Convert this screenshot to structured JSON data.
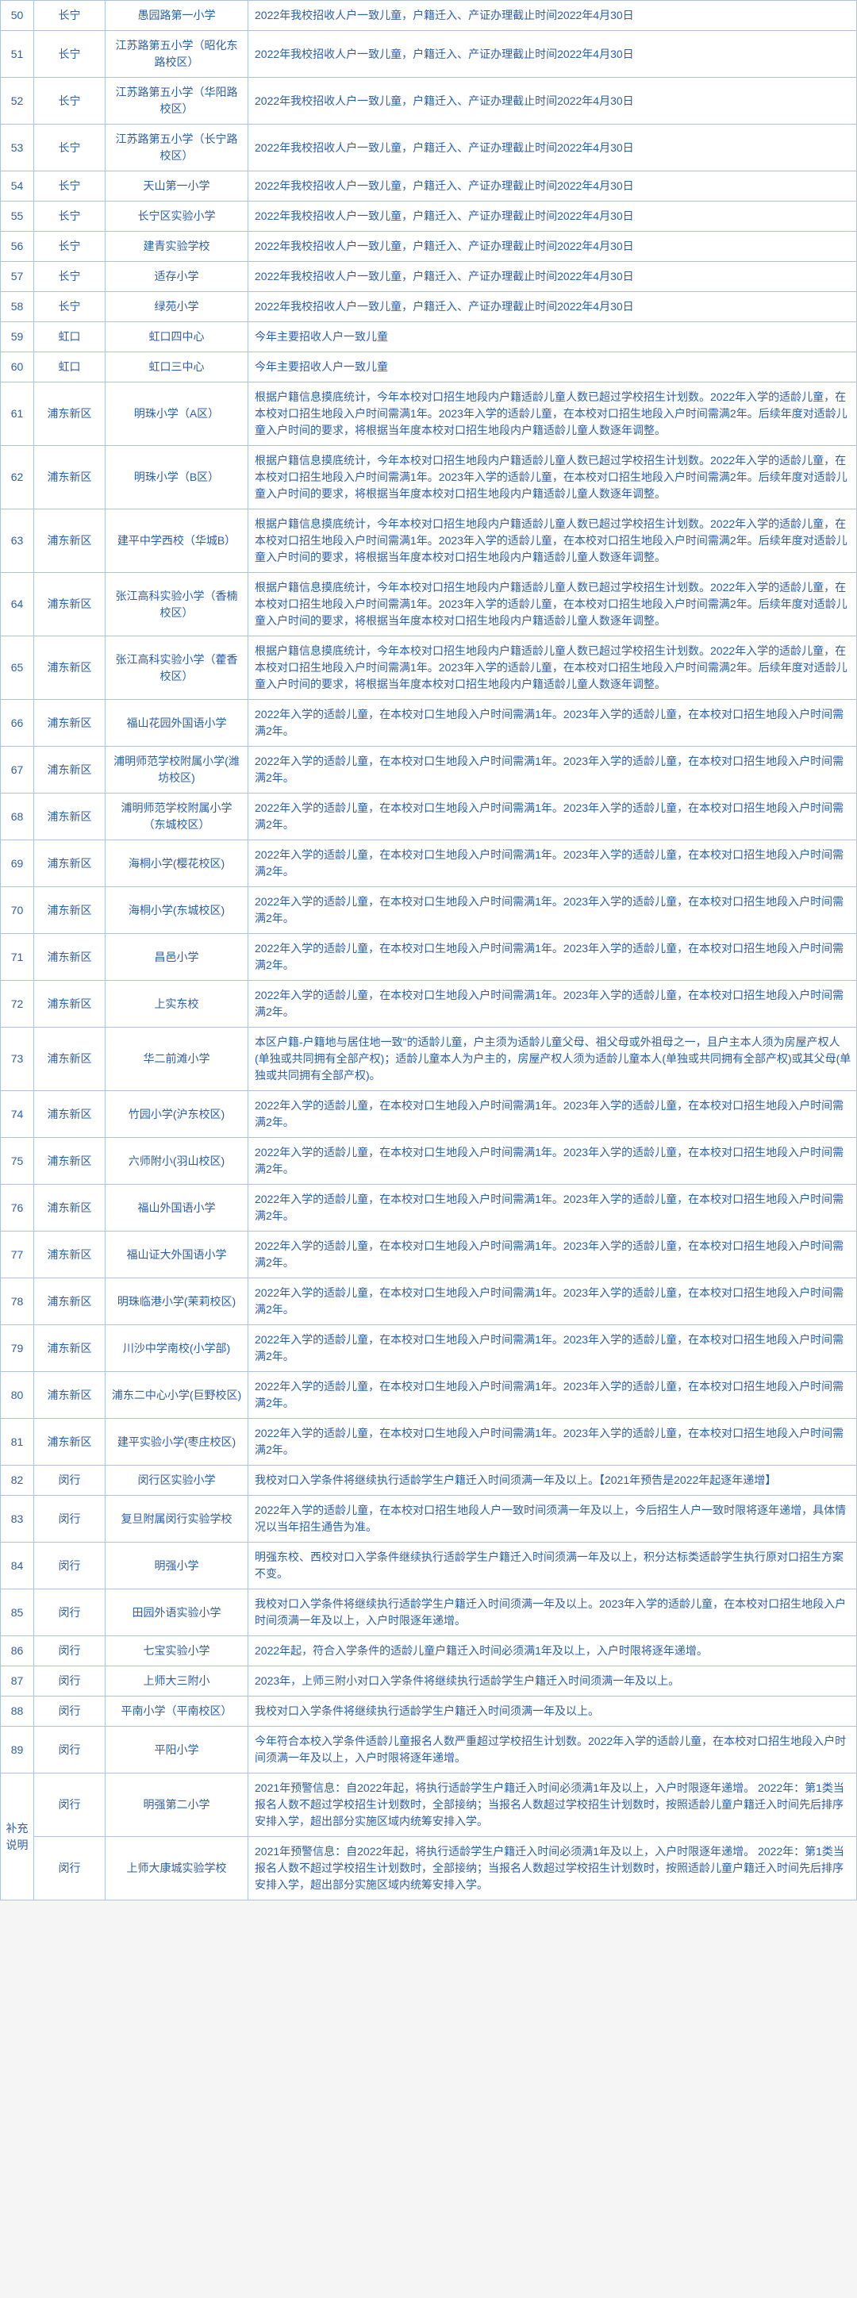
{
  "style": {
    "border_color": "#b0c4de",
    "text_color": "#2c5fa5",
    "bg_color": "#ffffff",
    "font_size": 14,
    "col_widths": {
      "idx": 42,
      "district": 90,
      "school": 180
    }
  },
  "rows": [
    {
      "idx": "50",
      "district": "长宁",
      "school": "愚园路第一小学",
      "desc": "2022年我校招收人户一致儿童，户籍迁入、产证办理截止时间2022年4月30日"
    },
    {
      "idx": "51",
      "district": "长宁",
      "school": "江苏路第五小学（昭化东路校区）",
      "desc": "2022年我校招收人户一致儿童，户籍迁入、产证办理截止时间2022年4月30日"
    },
    {
      "idx": "52",
      "district": "长宁",
      "school": "江苏路第五小学（华阳路校区）",
      "desc": "2022年我校招收人户一致儿童，户籍迁入、产证办理截止时间2022年4月30日"
    },
    {
      "idx": "53",
      "district": "长宁",
      "school": "江苏路第五小学（长宁路校区）",
      "desc": "2022年我校招收人户一致儿童，户籍迁入、产证办理截止时间2022年4月30日"
    },
    {
      "idx": "54",
      "district": "长宁",
      "school": "天山第一小学",
      "desc": "2022年我校招收人户一致儿童，户籍迁入、产证办理截止时间2022年4月30日"
    },
    {
      "idx": "55",
      "district": "长宁",
      "school": "长宁区实验小学",
      "desc": "2022年我校招收人户一致儿童，户籍迁入、产证办理截止时间2022年4月30日"
    },
    {
      "idx": "56",
      "district": "长宁",
      "school": "建青实验学校",
      "desc": "2022年我校招收人户一致儿童，户籍迁入、产证办理截止时间2022年4月30日"
    },
    {
      "idx": "57",
      "district": "长宁",
      "school": "适存小学",
      "desc": "2022年我校招收人户一致儿童，户籍迁入、产证办理截止时间2022年4月30日"
    },
    {
      "idx": "58",
      "district": "长宁",
      "school": "绿苑小学",
      "desc": "2022年我校招收人户一致儿童，户籍迁入、产证办理截止时间2022年4月30日"
    },
    {
      "idx": "59",
      "district": "虹口",
      "school": "虹口四中心",
      "desc": "今年主要招收人户一致儿童"
    },
    {
      "idx": "60",
      "district": "虹口",
      "school": "虹口三中心",
      "desc": "今年主要招收人户一致儿童"
    },
    {
      "idx": "61",
      "district": "浦东新区",
      "school": "明珠小学（A区）",
      "desc": "根据户籍信息摸底统计，今年本校对口招生地段内户籍适龄儿童人数已超过学校招生计划数。2022年入学的适龄儿童，在本校对口招生地段入户时间需满1年。2023年入学的适龄儿童，在本校对口招生地段入户时间需满2年。后续年度对适龄儿童入户时间的要求，将根据当年度本校对口招生地段内户籍适龄儿童人数逐年调整。"
    },
    {
      "idx": "62",
      "district": "浦东新区",
      "school": "明珠小学（B区）",
      "desc": "根据户籍信息摸底统计，今年本校对口招生地段内户籍适龄儿童人数已超过学校招生计划数。2022年入学的适龄儿童，在本校对口招生地段入户时间需满1年。2023年入学的适龄儿童，在本校对口招生地段入户时间需满2年。后续年度对适龄儿童入户时间的要求，将根据当年度本校对口招生地段内户籍适龄儿童人数逐年调整。"
    },
    {
      "idx": "63",
      "district": "浦东新区",
      "school": "建平中学西校（华城B）",
      "desc": "根据户籍信息摸底统计，今年本校对口招生地段内户籍适龄儿童人数已超过学校招生计划数。2022年入学的适龄儿童，在本校对口招生地段入户时间需满1年。2023年入学的适龄儿童，在本校对口招生地段入户时间需满2年。后续年度对适龄儿童入户时间的要求，将根据当年度本校对口招生地段内户籍适龄儿童人数逐年调整。"
    },
    {
      "idx": "64",
      "district": "浦东新区",
      "school": "张江高科实验小学（香楠校区）",
      "desc": "根据户籍信息摸底统计，今年本校对口招生地段内户籍适龄儿童人数已超过学校招生计划数。2022年入学的适龄儿童，在本校对口招生地段入户时间需满1年。2023年入学的适龄儿童，在本校对口招生地段入户时间需满2年。后续年度对适龄儿童入户时间的要求，将根据当年度本校对口招生地段内户籍适龄儿童人数逐年调整。"
    },
    {
      "idx": "65",
      "district": "浦东新区",
      "school": "张江高科实验小学（藿香校区）",
      "desc": "根据户籍信息摸底统计，今年本校对口招生地段内户籍适龄儿童人数已超过学校招生计划数。2022年入学的适龄儿童，在本校对口招生地段入户时间需满1年。2023年入学的适龄儿童，在本校对口招生地段入户时间需满2年。后续年度对适龄儿童入户时间的要求，将根据当年度本校对口招生地段内户籍适龄儿童人数逐年调整。"
    },
    {
      "idx": "66",
      "district": "浦东新区",
      "school": "福山花园外国语小学",
      "desc": "2022年入学的适龄儿童，在本校对口生地段入户时间需满1年。2023年入学的适龄儿童，在本校对口招生地段入户时间需满2年。"
    },
    {
      "idx": "67",
      "district": "浦东新区",
      "school": "浦明师范学校附属小学(潍坊校区)",
      "desc": "2022年入学的适龄儿童，在本校对口生地段入户时间需满1年。2023年入学的适龄儿童，在本校对口招生地段入户时间需满2年。"
    },
    {
      "idx": "68",
      "district": "浦东新区",
      "school": "浦明师范学校附属小学（东城校区）",
      "desc": "2022年入学的适龄儿童，在本校对口生地段入户时间需满1年。2023年入学的适龄儿童，在本校对口招生地段入户时间需满2年。"
    },
    {
      "idx": "69",
      "district": "浦东新区",
      "school": "海桐小学(樱花校区)",
      "desc": "2022年入学的适龄儿童，在本校对口生地段入户时间需满1年。2023年入学的适龄儿童，在本校对口招生地段入户时间需满2年。"
    },
    {
      "idx": "70",
      "district": "浦东新区",
      "school": "海桐小学(东城校区)",
      "desc": "2022年入学的适龄儿童，在本校对口生地段入户时间需满1年。2023年入学的适龄儿童，在本校对口招生地段入户时间需满2年。"
    },
    {
      "idx": "71",
      "district": "浦东新区",
      "school": "昌邑小学",
      "desc": "2022年入学的适龄儿童，在本校对口生地段入户时间需满1年。2023年入学的适龄儿童，在本校对口招生地段入户时间需满2年。"
    },
    {
      "idx": "72",
      "district": "浦东新区",
      "school": "上实东校",
      "desc": "2022年入学的适龄儿童，在本校对口生地段入户时间需满1年。2023年入学的适龄儿童，在本校对口招生地段入户时间需满2年。"
    },
    {
      "idx": "73",
      "district": "浦东新区",
      "school": "华二前滩小学",
      "desc": "本区户籍-户籍地与居住地一致\"的适龄儿童，户主须为适龄儿童父母、祖父母或外祖母之一，且户主本人须为房屋产权人(单独或共同拥有全部产权)；适龄儿童本人为户主的，房屋产权人须为适龄儿童本人(单独或共同拥有全部产权)或其父母(单独或共同拥有全部产权)。"
    },
    {
      "idx": "74",
      "district": "浦东新区",
      "school": "竹园小学(沪东校区)",
      "desc": "2022年入学的适龄儿童，在本校对口生地段入户时间需满1年。2023年入学的适龄儿童，在本校对口招生地段入户时间需满2年。"
    },
    {
      "idx": "75",
      "district": "浦东新区",
      "school": "六师附小(羽山校区)",
      "desc": "2022年入学的适龄儿童，在本校对口生地段入户时间需满1年。2023年入学的适龄儿童，在本校对口招生地段入户时间需满2年。"
    },
    {
      "idx": "76",
      "district": "浦东新区",
      "school": "福山外国语小学",
      "desc": "2022年入学的适龄儿童，在本校对口生地段入户时间需满1年。2023年入学的适龄儿童，在本校对口招生地段入户时间需满2年。"
    },
    {
      "idx": "77",
      "district": "浦东新区",
      "school": "福山证大外国语小学",
      "desc": "2022年入学的适龄儿童，在本校对口生地段入户时间需满1年。2023年入学的适龄儿童，在本校对口招生地段入户时间需满2年。"
    },
    {
      "idx": "78",
      "district": "浦东新区",
      "school": "明珠临港小学(茉莉校区)",
      "desc": "2022年入学的适龄儿童，在本校对口生地段入户时间需满1年。2023年入学的适龄儿童，在本校对口招生地段入户时间需满2年。"
    },
    {
      "idx": "79",
      "district": "浦东新区",
      "school": "川沙中学南校(小学部)",
      "desc": "2022年入学的适龄儿童，在本校对口生地段入户时间需满1年。2023年入学的适龄儿童，在本校对口招生地段入户时间需满2年。"
    },
    {
      "idx": "80",
      "district": "浦东新区",
      "school": "浦东二中心小学(巨野校区)",
      "desc": "2022年入学的适龄儿童，在本校对口生地段入户时间需满1年。2023年入学的适龄儿童，在本校对口招生地段入户时间需满2年。"
    },
    {
      "idx": "81",
      "district": "浦东新区",
      "school": "建平实验小学(枣庄校区)",
      "desc": "2022年入学的适龄儿童，在本校对口生地段入户时间需满1年。2023年入学的适龄儿童，在本校对口招生地段入户时间需满2年。"
    },
    {
      "idx": "82",
      "district": "闵行",
      "school": "闵行区实验小学",
      "desc": "我校对口入学条件将继续执行适龄学生户籍迁入时间须满一年及以上。【2021年预告是2022年起逐年递增】"
    },
    {
      "idx": "83",
      "district": "闵行",
      "school": "复旦附属闵行实验学校",
      "desc": "2022年入学的适龄儿童，在本校对口招生地段人户一致时间须满一年及以上，今后招生人户一致时限将逐年递增，具体情况以当年招生通告为准。"
    },
    {
      "idx": "84",
      "district": "闵行",
      "school": "明强小学",
      "desc": "明强东校、西校对口入学条件继续执行适龄学生户籍迁入时间须满一年及以上，积分达标类适龄学生执行原对口招生方案不变。"
    },
    {
      "idx": "85",
      "district": "闵行",
      "school": "田园外语实验小学",
      "desc": "我校对口入学条件将继续执行适龄学生户籍迁入时间须满一年及以上。2023年入学的适龄儿童，在本校对口招生地段入户时间须满一年及以上，入户时限逐年递增。"
    },
    {
      "idx": "86",
      "district": "闵行",
      "school": "七宝实验小学",
      "desc": "2022年起，符合入学条件的适龄儿童户籍迁入时间必须满1年及以上，入户时限将逐年递增。"
    },
    {
      "idx": "87",
      "district": "闵行",
      "school": "上师大三附小",
      "desc": "2023年，上师三附小对口入学条件将继续执行适龄学生户籍迁入时间须满一年及以上。"
    },
    {
      "idx": "88",
      "district": "闵行",
      "school": "平南小学（平南校区）",
      "desc": "我校对口入学条件将继续执行适龄学生户籍迁入时间须满一年及以上。"
    },
    {
      "idx": "89",
      "district": "闵行",
      "school": "平阳小学",
      "desc": "今年符合本校入学条件适龄儿童报名人数严重超过学校招生计划数。2022年入学的适龄儿童，在本校对口招生地段入户时间须满一年及以上，入户时限将逐年递增。"
    }
  ],
  "supplement_label": "补充说明",
  "supplement_rows": [
    {
      "district": "闵行",
      "school": "明强第二小学",
      "desc": "2021年预警信息：自2022年起，将执行适龄学生户籍迁入时间必须满1年及以上，入户时限逐年递增。\n2022年：第1类当报名人数不超过学校招生计划数时，全部接纳；当报名人数超过学校招生计划数时，按照适龄儿童户籍迁入时间先后排序安排入学，超出部分实施区域内统筹安排入学。"
    },
    {
      "district": "闵行",
      "school": "上师大康城实验学校",
      "desc": "2021年预警信息：自2022年起，将执行适龄学生户籍迁入时间必须满1年及以上，入户时限逐年递增。\n2022年：第1类当报名人数不超过学校招生计划数时，全部接纳；当报名人数超过学校招生计划数时，按照适龄儿童户籍迁入时间先后排序安排入学，超出部分实施区域内统筹安排入学。"
    }
  ]
}
